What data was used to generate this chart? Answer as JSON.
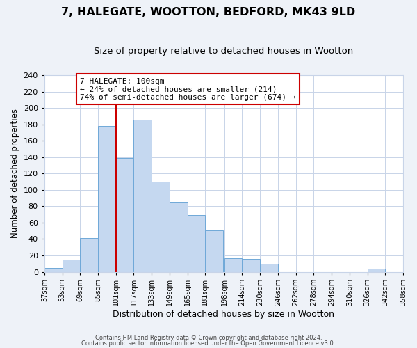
{
  "title": "7, HALEGATE, WOOTTON, BEDFORD, MK43 9LD",
  "subtitle": "Size of property relative to detached houses in Wootton",
  "xlabel": "Distribution of detached houses by size in Wootton",
  "ylabel": "Number of detached properties",
  "bins": [
    37,
    53,
    69,
    85,
    101,
    117,
    133,
    149,
    165,
    181,
    198,
    214,
    230,
    246,
    262,
    278,
    294,
    310,
    326,
    342,
    358
  ],
  "counts": [
    5,
    15,
    41,
    178,
    139,
    186,
    110,
    85,
    69,
    51,
    17,
    16,
    10,
    0,
    0,
    0,
    0,
    0,
    4,
    0
  ],
  "bar_color": "#c5d8f0",
  "bar_edge_color": "#6fa8d8",
  "vline_x": 101,
  "vline_color": "#cc0000",
  "annotation_text_line1": "7 HALEGATE: 100sqm",
  "annotation_text_line2": "← 24% of detached houses are smaller (214)",
  "annotation_text_line3": "74% of semi-detached houses are larger (674) →",
  "ylim": [
    0,
    240
  ],
  "yticks": [
    0,
    20,
    40,
    60,
    80,
    100,
    120,
    140,
    160,
    180,
    200,
    220,
    240
  ],
  "tick_labels": [
    "37sqm",
    "53sqm",
    "69sqm",
    "85sqm",
    "101sqm",
    "117sqm",
    "133sqm",
    "149sqm",
    "165sqm",
    "181sqm",
    "198sqm",
    "214sqm",
    "230sqm",
    "246sqm",
    "262sqm",
    "278sqm",
    "294sqm",
    "310sqm",
    "326sqm",
    "342sqm",
    "358sqm"
  ],
  "footer1": "Contains HM Land Registry data © Crown copyright and database right 2024.",
  "footer2": "Contains public sector information licensed under the Open Government Licence v3.0.",
  "background_color": "#eef2f8",
  "plot_bg_color": "#ffffff",
  "grid_color": "#c8d4e8",
  "title_fontsize": 11.5,
  "subtitle_fontsize": 9.5,
  "xlabel_fontsize": 9,
  "ylabel_fontsize": 8.5
}
